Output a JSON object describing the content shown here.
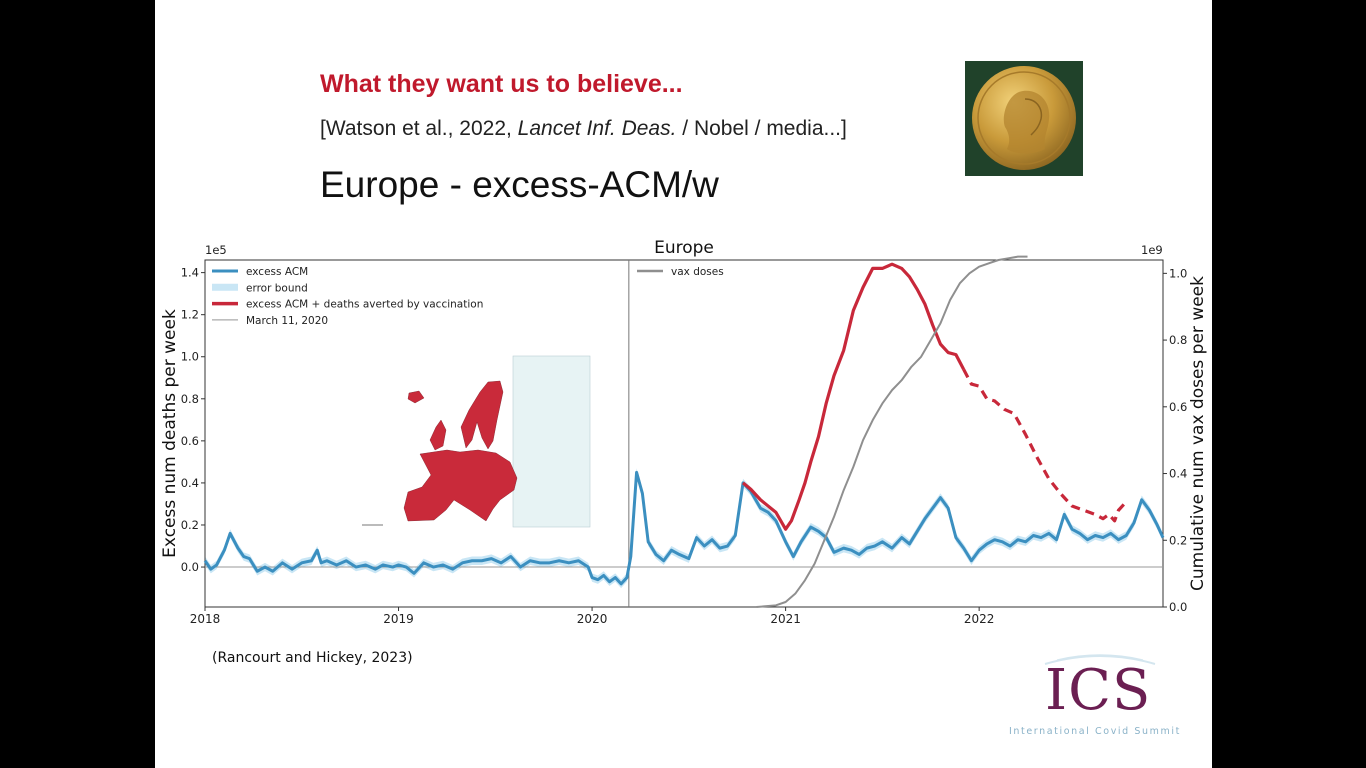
{
  "slide": {
    "title": "What they want us to believe...",
    "citation_prefix": "[Watson et al., 2022, ",
    "citation_journal": "Lancet Inf. Deas.",
    "citation_suffix": " / Nobel / media...]",
    "heading": "Europe  -  excess-ACM/w",
    "source": "(Rancourt and Hickey, 2023)"
  },
  "logo": {
    "name": "ICS",
    "subtitle": "International Covid Summit"
  },
  "colors": {
    "excess_acm": "#3b8fc0",
    "error_bound": "#c9e6f5",
    "averted": "#c8283a",
    "vax": "#8f8f8f",
    "map_fill": "#c92a3a",
    "map_other": "#e7f3f4",
    "title_red": "#c0192c",
    "logo_purple": "#6b1f52"
  },
  "chart_data": {
    "type": "line",
    "title": "Europe",
    "xlabel": "",
    "ylabel_left": "Excess num deaths per week",
    "ylabel_right": "Cumulative num vax doses per week",
    "y_left_scale": "1e5",
    "y_right_scale": "1e9",
    "xlim": [
      2018.0,
      2022.95
    ],
    "ylim_left": [
      -0.19,
      1.46
    ],
    "ylim_right": [
      0.0,
      1.04
    ],
    "x_ticks": [
      "2018",
      "2019",
      "2020",
      "2021",
      "2022"
    ],
    "y_left_ticks": [
      "0.0",
      "0.2",
      "0.4",
      "0.6",
      "0.8",
      "1.0",
      "1.2",
      "1.4"
    ],
    "y_right_ticks": [
      "0.0",
      "0.2",
      "0.4",
      "0.6",
      "0.8",
      "1.0"
    ],
    "legend_left": [
      "excess ACM",
      "error bound",
      "excess ACM + deaths averted by vaccination",
      "March 11, 2020"
    ],
    "legend_right": [
      "vax doses"
    ],
    "legend_left_position": "top-left",
    "legend_right_position": "top-left of right panel",
    "march_11_2020": 2020.19,
    "series": [
      {
        "name": "excess ACM",
        "x": [
          2018.0,
          2018.03,
          2018.06,
          2018.1,
          2018.13,
          2018.17,
          2018.2,
          2018.23,
          2018.27,
          2018.31,
          2018.35,
          2018.4,
          2018.45,
          2018.5,
          2018.55,
          2018.58,
          2018.6,
          2018.63,
          2018.68,
          2018.73,
          2018.78,
          2018.83,
          2018.88,
          2018.92,
          2018.97,
          2019.0,
          2019.04,
          2019.08,
          2019.13,
          2019.18,
          2019.23,
          2019.28,
          2019.33,
          2019.38,
          2019.43,
          2019.48,
          2019.53,
          2019.58,
          2019.63,
          2019.68,
          2019.73,
          2019.78,
          2019.83,
          2019.88,
          2019.93,
          2019.98,
          2020.0,
          2020.03,
          2020.06,
          2020.09,
          2020.12,
          2020.15,
          2020.18,
          2020.2,
          2020.23,
          2020.26,
          2020.29,
          2020.33,
          2020.37,
          2020.41,
          2020.45,
          2020.5,
          2020.54,
          2020.58,
          2020.62,
          2020.66,
          2020.7,
          2020.74,
          2020.78,
          2020.82,
          2020.87,
          2020.91,
          2020.95,
          2021.0,
          2021.04,
          2021.08,
          2021.13,
          2021.17,
          2021.21,
          2021.25,
          2021.3,
          2021.34,
          2021.38,
          2021.42,
          2021.46,
          2021.5,
          2021.55,
          2021.6,
          2021.64,
          2021.68,
          2021.72,
          2021.76,
          2021.8,
          2021.84,
          2021.88,
          2021.92,
          2021.96,
          2022.0,
          2022.04,
          2022.08,
          2022.12,
          2022.16,
          2022.2,
          2022.24,
          2022.28,
          2022.32,
          2022.36,
          2022.4,
          2022.44,
          2022.48,
          2022.52,
          2022.56,
          2022.6,
          2022.64,
          2022.68,
          2022.72,
          2022.76,
          2022.8,
          2022.84,
          2022.88,
          2022.92,
          2022.95
        ],
        "y": [
          0.03,
          -0.01,
          0.01,
          0.08,
          0.16,
          0.09,
          0.05,
          0.04,
          -0.02,
          0.0,
          -0.02,
          0.02,
          -0.01,
          0.02,
          0.03,
          0.08,
          0.02,
          0.03,
          0.01,
          0.03,
          0.0,
          0.01,
          -0.01,
          0.01,
          0.0,
          0.01,
          0.0,
          -0.03,
          0.02,
          0.0,
          0.01,
          -0.01,
          0.02,
          0.03,
          0.03,
          0.04,
          0.02,
          0.05,
          0.0,
          0.03,
          0.02,
          0.02,
          0.03,
          0.02,
          0.03,
          0.0,
          -0.05,
          -0.06,
          -0.04,
          -0.07,
          -0.05,
          -0.08,
          -0.05,
          0.05,
          0.45,
          0.35,
          0.12,
          0.06,
          0.03,
          0.08,
          0.06,
          0.04,
          0.14,
          0.1,
          0.13,
          0.09,
          0.1,
          0.15,
          0.4,
          0.36,
          0.28,
          0.26,
          0.22,
          0.12,
          0.05,
          0.12,
          0.19,
          0.17,
          0.14,
          0.07,
          0.09,
          0.08,
          0.06,
          0.09,
          0.1,
          0.12,
          0.09,
          0.14,
          0.11,
          0.17,
          0.23,
          0.28,
          0.33,
          0.28,
          0.14,
          0.09,
          0.03,
          0.08,
          0.11,
          0.13,
          0.12,
          0.1,
          0.13,
          0.12,
          0.15,
          0.14,
          0.16,
          0.13,
          0.25,
          0.18,
          0.16,
          0.13,
          0.15,
          0.14,
          0.16,
          0.13,
          0.15,
          0.21,
          0.32,
          0.27,
          0.2,
          0.14
        ],
        "color": "#3b8fc0"
      },
      {
        "name": "excess ACM + deaths averted by vaccination",
        "x": [
          2020.78,
          2020.82,
          2020.87,
          2020.91,
          2020.95,
          2021.0,
          2021.03,
          2021.07,
          2021.1,
          2021.13,
          2021.17,
          2021.21,
          2021.25,
          2021.3,
          2021.35,
          2021.4,
          2021.45,
          2021.5,
          2021.55,
          2021.6,
          2021.64,
          2021.68,
          2021.72,
          2021.76,
          2021.8,
          2021.84,
          2021.88,
          2021.92,
          2021.96,
          2022.0,
          2022.04,
          2022.08,
          2022.13,
          2022.18,
          2022.24,
          2022.3,
          2022.36,
          2022.42,
          2022.48,
          2022.54,
          2022.6,
          2022.64,
          2022.67,
          2022.7,
          2022.72,
          2022.75
        ],
        "y": [
          0.4,
          0.37,
          0.32,
          0.29,
          0.26,
          0.18,
          0.22,
          0.32,
          0.4,
          0.5,
          0.62,
          0.78,
          0.91,
          1.03,
          1.22,
          1.33,
          1.42,
          1.42,
          1.44,
          1.42,
          1.38,
          1.32,
          1.25,
          1.15,
          1.06,
          1.02,
          1.01,
          0.94,
          0.87,
          0.86,
          0.8,
          0.79,
          0.75,
          0.73,
          0.63,
          0.52,
          0.42,
          0.35,
          0.29,
          0.27,
          0.25,
          0.23,
          0.25,
          0.22,
          0.27,
          0.3
        ],
        "dashed_from_x": 2021.95,
        "color": "#c8283a"
      },
      {
        "name": "vax doses",
        "axis": "right",
        "x": [
          2020.85,
          2020.95,
          2021.0,
          2021.05,
          2021.1,
          2021.15,
          2021.2,
          2021.25,
          2021.3,
          2021.35,
          2021.4,
          2021.45,
          2021.5,
          2021.55,
          2021.6,
          2021.65,
          2021.7,
          2021.75,
          2021.8,
          2021.85,
          2021.9,
          2021.95,
          2022.0,
          2022.05,
          2022.1,
          2022.15,
          2022.2,
          2022.25
        ],
        "y": [
          0.0,
          0.005,
          0.015,
          0.04,
          0.08,
          0.13,
          0.2,
          0.27,
          0.35,
          0.42,
          0.5,
          0.56,
          0.61,
          0.65,
          0.68,
          0.72,
          0.75,
          0.8,
          0.85,
          0.92,
          0.97,
          1.0,
          1.02,
          1.03,
          1.04,
          1.045,
          1.05,
          1.05
        ],
        "color": "#8f8f8f"
      }
    ]
  }
}
